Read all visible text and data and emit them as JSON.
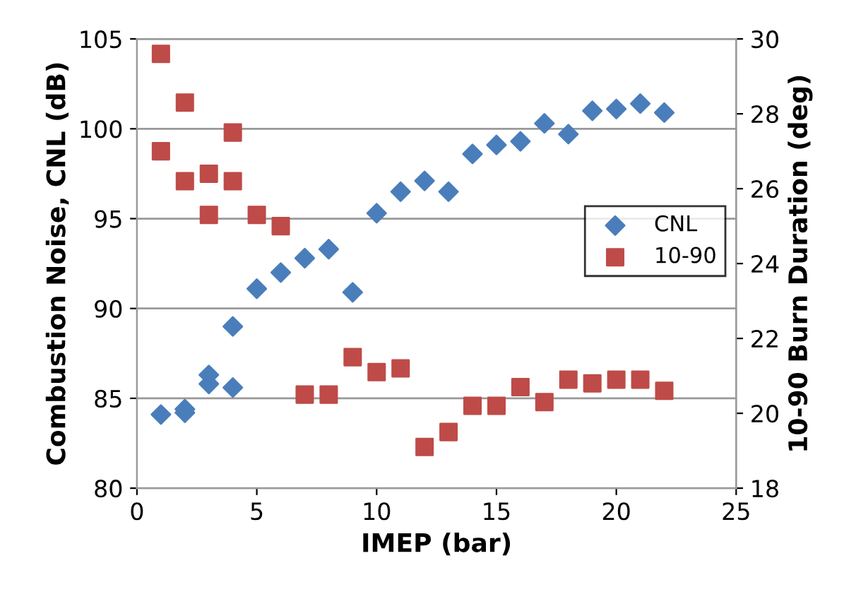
{
  "chart_data": {
    "type": "scatter",
    "xlabel": "IMEP (bar)",
    "ylabel": "Combustion Noise, CNL (dB)",
    "y2label": "10-90 Burn Duration (deg)",
    "xlim": [
      0,
      25
    ],
    "xticks": [
      0,
      5,
      10,
      15,
      20,
      25
    ],
    "ylim": [
      80,
      105
    ],
    "yticks": [
      80,
      85,
      90,
      95,
      100,
      105
    ],
    "y2lim": [
      18,
      30
    ],
    "y2ticks": [
      18,
      20,
      22,
      24,
      26,
      28,
      30
    ],
    "grid": "y",
    "legend": "right",
    "series": [
      {
        "name": "CNL",
        "color": "#4a7ebb",
        "marker": "diamond",
        "x": [
          1,
          2,
          2,
          3,
          3,
          4,
          4,
          5,
          6,
          7,
          8,
          9,
          10,
          11,
          12,
          13,
          14,
          15,
          16,
          17,
          18,
          19,
          20,
          21,
          22
        ],
        "values": [
          84.1,
          84.4,
          84.2,
          85.8,
          86.3,
          85.6,
          89.0,
          91.1,
          92.0,
          92.8,
          93.3,
          90.9,
          95.3,
          96.5,
          97.1,
          96.5,
          98.6,
          99.1,
          99.3,
          100.3,
          99.7,
          101.0,
          101.1,
          101.4,
          100.9
        ]
      },
      {
        "name": "10-90",
        "color": "#be4b48",
        "marker": "square",
        "axis": "y2",
        "x": [
          1,
          1,
          2,
          2,
          3,
          3,
          4,
          4,
          5,
          6,
          7,
          8,
          9,
          10,
          11,
          12,
          13,
          14,
          15,
          16,
          17,
          18,
          19,
          20,
          21,
          22
        ],
        "values": [
          29.6,
          27.0,
          28.3,
          26.2,
          26.4,
          25.3,
          27.5,
          26.2,
          25.3,
          25.0,
          20.5,
          20.5,
          21.5,
          21.1,
          21.2,
          19.1,
          19.5,
          20.2,
          20.2,
          20.7,
          20.3,
          20.9,
          20.8,
          20.9,
          20.9,
          20.6
        ]
      }
    ]
  }
}
